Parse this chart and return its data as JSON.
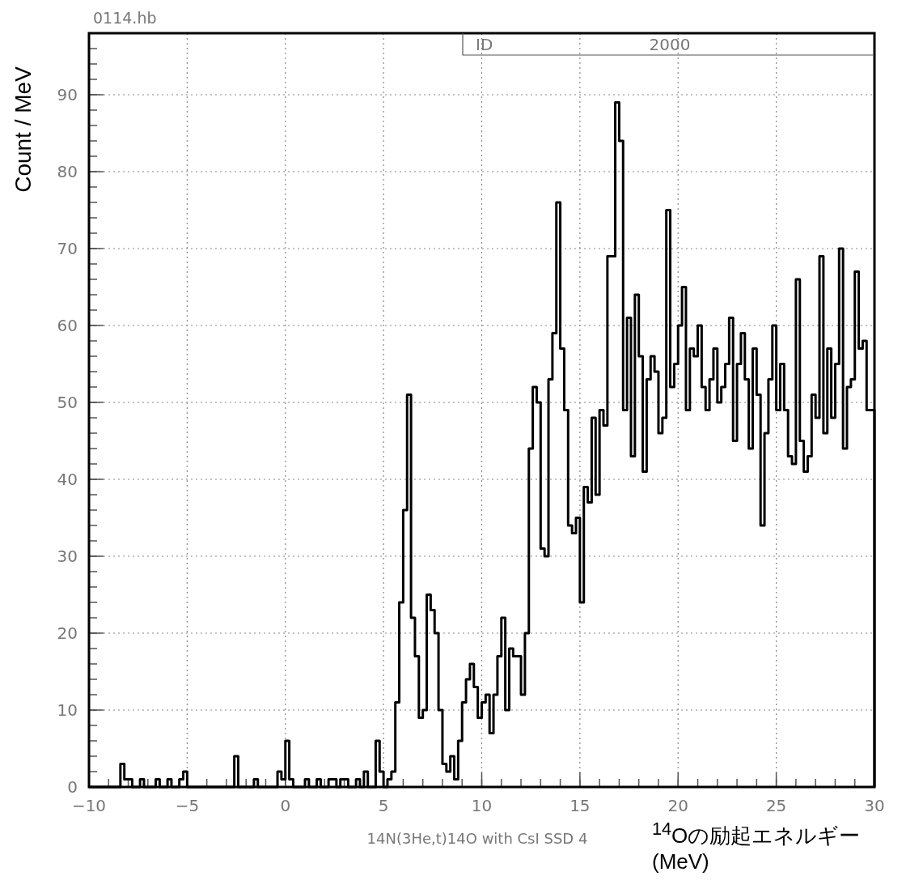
{
  "chart_data": {
    "type": "histogram",
    "title": "0114.hb",
    "xlabel": "$^{14}$Oの励起エネルギー (MeV)",
    "ylabel": "Count / MeV",
    "annotations": [
      "ID",
      "2000",
      "14N(3He,t)14O with CsI SSD 4"
    ],
    "color": "#000000",
    "grid": true,
    "xlim": [
      -10,
      30
    ],
    "ylim": [
      0,
      98
    ],
    "xticks": [
      -10,
      -5,
      0,
      5,
      10,
      15,
      20,
      25,
      30
    ],
    "yticks": [
      0,
      10,
      20,
      30,
      40,
      50,
      60,
      70,
      80,
      90
    ],
    "bins": [
      -10,
      -9.8,
      -9.6,
      -9.4,
      -9.2,
      -9,
      -8.8,
      -8.6,
      -8.4,
      -8.2,
      -8,
      -7.8,
      -7.6,
      -7.4,
      -7.2,
      -7,
      -6.8,
      -6.6,
      -6.4,
      -6.2,
      -6,
      -5.8,
      -5.6,
      -5.4,
      -5.2,
      -5,
      -4.8,
      -4.6,
      -4.4,
      -4.2,
      -4,
      -3.8,
      -3.6,
      -3.4,
      -3.2,
      -3,
      -2.8,
      -2.6,
      -2.4,
      -2.2,
      -2,
      -1.8,
      -1.6,
      -1.4,
      -1.2,
      -1,
      -0.8,
      -0.6,
      -0.4,
      -0.2,
      0,
      0.2,
      0.4,
      0.6,
      0.8,
      1,
      1.2,
      1.4,
      1.6,
      1.8,
      2,
      2.2,
      2.4,
      2.6,
      2.8,
      3,
      3.2,
      3.4,
      3.6,
      3.8,
      4,
      4.2,
      4.4,
      4.6,
      4.8,
      5,
      5.2,
      5.4,
      5.6,
      5.8,
      6,
      6.2,
      6.4,
      6.6,
      6.8,
      7,
      7.2,
      7.4,
      7.6,
      7.8,
      8,
      8.2,
      8.4,
      8.6,
      8.8,
      9,
      9.2,
      9.4,
      9.6,
      9.8,
      10,
      10.2,
      10.4,
      10.6,
      10.8,
      11,
      11.2,
      11.4,
      11.6,
      11.8,
      12,
      12.2,
      12.4,
      12.6,
      12.8,
      13,
      13.2,
      13.4,
      13.6,
      13.8,
      14,
      14.2,
      14.4,
      14.6,
      14.8,
      15,
      15.2,
      15.4,
      15.6,
      15.8,
      16,
      16.2,
      16.4,
      16.6,
      16.8,
      17,
      17.2,
      17.4,
      17.6,
      17.8,
      18,
      18.2,
      18.4,
      18.6,
      18.8,
      19,
      19.2,
      19.4,
      19.6,
      19.8,
      20,
      20.2,
      20.4,
      20.6,
      20.8,
      21,
      21.2,
      21.4,
      21.6,
      21.8,
      22,
      22.2,
      22.4,
      22.6,
      22.8,
      23,
      23.2,
      23.4,
      23.6,
      23.8,
      24,
      24.2,
      24.4,
      24.6,
      24.8,
      25,
      25.2,
      25.4,
      25.6,
      25.8,
      26,
      26.2,
      26.4,
      26.6,
      26.8,
      27,
      27.2,
      27.4,
      27.6,
      27.8,
      28,
      28.2,
      28.4,
      28.6,
      28.8,
      29,
      29.2,
      29.4,
      29.6,
      29.8,
      30
    ],
    "values": [
      0,
      0,
      0,
      0,
      0,
      0,
      0,
      0,
      3,
      1,
      1,
      0,
      0,
      1,
      0,
      0,
      0,
      1,
      0,
      0,
      1,
      0,
      0,
      1,
      2,
      0,
      0,
      0,
      0,
      0,
      0,
      0,
      0,
      0,
      0,
      0,
      0,
      4,
      0,
      0,
      0,
      0,
      1,
      0,
      0,
      0,
      0,
      0,
      2,
      1,
      6,
      1,
      0,
      0,
      0,
      1,
      0,
      0,
      1,
      0,
      0,
      1,
      1,
      0,
      1,
      1,
      0,
      0,
      1,
      0,
      2,
      0,
      0,
      6,
      2,
      0,
      1,
      2,
      11,
      24,
      36,
      51,
      22,
      17,
      9,
      10,
      25,
      23,
      20,
      10,
      3,
      2,
      4,
      1,
      6,
      11,
      14,
      16,
      13,
      9,
      11,
      12,
      7,
      12,
      17,
      22,
      10,
      18,
      17,
      17,
      12,
      20,
      44,
      52,
      50,
      31,
      30,
      53,
      59,
      76,
      57,
      49,
      34,
      33,
      35,
      24,
      39,
      37,
      48,
      38,
      49,
      47,
      69,
      69,
      89,
      84,
      49,
      61,
      43,
      64,
      56,
      41,
      53,
      56,
      54,
      46,
      48,
      75,
      52,
      55,
      60,
      65,
      49,
      57,
      56,
      60,
      52,
      49,
      53,
      57,
      50,
      52,
      55,
      61,
      45,
      55,
      59,
      53,
      44,
      57,
      51,
      34,
      46,
      53,
      60,
      49,
      55,
      49,
      43,
      42,
      66,
      45,
      41,
      43,
      51,
      48,
      69,
      46,
      57,
      48,
      55,
      70,
      44,
      52,
      53,
      67,
      57,
      58,
      49,
      49
    ]
  }
}
